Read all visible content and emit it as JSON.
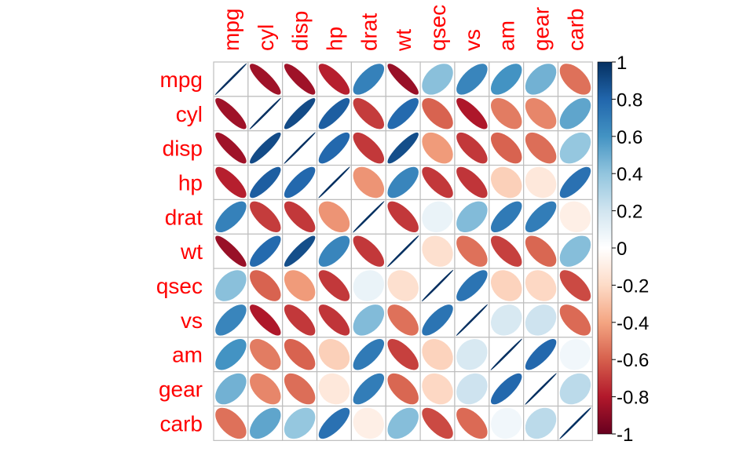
{
  "chart_data": {
    "type": "heatmap",
    "method": "ellipse",
    "variables": [
      "mpg",
      "cyl",
      "disp",
      "hp",
      "drat",
      "wt",
      "qsec",
      "vs",
      "am",
      "gear",
      "carb"
    ],
    "matrix": [
      [
        1,
        -0.85,
        -0.85,
        -0.78,
        0.68,
        -0.87,
        0.42,
        0.66,
        0.6,
        0.48,
        -0.55
      ],
      [
        -0.85,
        1,
        0.9,
        0.83,
        -0.7,
        0.78,
        -0.59,
        -0.81,
        -0.52,
        -0.49,
        0.53
      ],
      [
        -0.85,
        0.9,
        1,
        0.79,
        -0.71,
        0.89,
        -0.43,
        -0.71,
        -0.59,
        -0.56,
        0.39
      ],
      [
        -0.78,
        0.83,
        0.79,
        1,
        -0.45,
        0.66,
        -0.71,
        -0.72,
        -0.24,
        -0.13,
        0.75
      ],
      [
        0.68,
        -0.7,
        -0.71,
        -0.45,
        1,
        -0.71,
        0.09,
        0.44,
        0.71,
        0.7,
        -0.09
      ],
      [
        -0.87,
        0.78,
        0.89,
        0.66,
        -0.71,
        1,
        -0.17,
        -0.55,
        -0.69,
        -0.58,
        0.43
      ],
      [
        0.42,
        -0.59,
        -0.43,
        -0.71,
        0.09,
        -0.17,
        1,
        0.74,
        -0.23,
        -0.21,
        -0.66
      ],
      [
        0.66,
        -0.81,
        -0.71,
        -0.72,
        0.44,
        -0.55,
        0.74,
        1,
        0.17,
        0.21,
        -0.57
      ],
      [
        0.6,
        -0.52,
        -0.59,
        -0.24,
        0.71,
        -0.69,
        -0.23,
        0.17,
        1,
        0.79,
        0.06
      ],
      [
        0.48,
        -0.49,
        -0.56,
        -0.13,
        0.7,
        -0.58,
        -0.21,
        0.21,
        0.79,
        1,
        0.27
      ],
      [
        -0.55,
        0.53,
        0.39,
        0.75,
        -0.09,
        0.43,
        -0.66,
        -0.57,
        0.06,
        0.27,
        1
      ]
    ],
    "colorbar": {
      "range": [
        -1,
        1
      ],
      "ticks": [
        "1",
        "0.8",
        "0.6",
        "0.4",
        "0.2",
        "0",
        "-0.2",
        "-0.4",
        "-0.6",
        "-0.8",
        "-1"
      ]
    },
    "colors": {
      "label": "#ff0000",
      "grid": "#bebebe",
      "palette": [
        "#67001f",
        "#b2182b",
        "#d6604d",
        "#f4a582",
        "#fddbc7",
        "#ffffff",
        "#d1e5f0",
        "#92c5de",
        "#4393c3",
        "#2166ac",
        "#053061"
      ]
    }
  }
}
